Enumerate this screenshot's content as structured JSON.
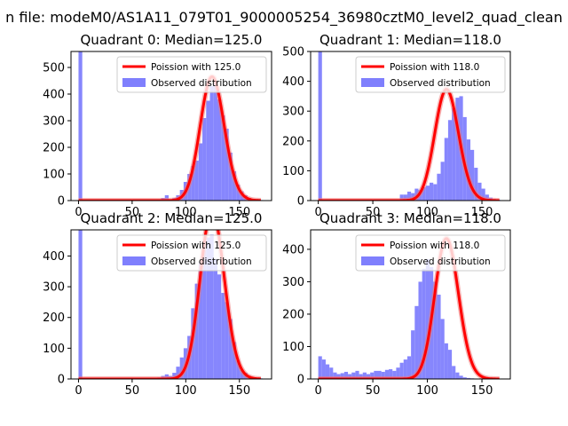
{
  "figure": {
    "title": "n file: modeM0/AS1A11_079T01_9000005254_36980cztM0_level2_quad_clean"
  },
  "colors": {
    "hist": "#7f7ffd",
    "poisson": "#ff0000",
    "poisson_highlight": "#f07878"
  },
  "chart_data": [
    {
      "type": "bar",
      "title": "Quadrant 0: Median=125.0",
      "xlim": [
        -7,
        180
      ],
      "ylim": [
        0,
        560
      ],
      "xticks": [
        0,
        50,
        100,
        150
      ],
      "yticks": [
        0,
        100,
        200,
        300,
        400,
        500
      ],
      "legend": {
        "placement": "top-right",
        "entries": [
          "Poission with 125.0",
          "Observed distribution"
        ]
      },
      "hist_bins": {
        "start": 0,
        "width": 3.5
      },
      "hist_counts": [
        560,
        0,
        0,
        0,
        0,
        0,
        0,
        0,
        0,
        0,
        0,
        0,
        0,
        0,
        0,
        0,
        0,
        0,
        0,
        0,
        0,
        5,
        10,
        20,
        5,
        10,
        20,
        40,
        70,
        100,
        130,
        150,
        215,
        310,
        375,
        430,
        440,
        380,
        320,
        270,
        180,
        110,
        60,
        35,
        20,
        10,
        5,
        3,
        2
      ],
      "poisson_mean": 125.0,
      "poisson_scale": 3.5,
      "poisson_range": [
        0,
        170
      ]
    },
    {
      "type": "bar",
      "title": "Quadrant 1: Median=118.0",
      "xlim": [
        -7,
        176
      ],
      "ylim": [
        0,
        500
      ],
      "xticks": [
        0,
        50,
        100,
        150
      ],
      "yticks": [
        0,
        100,
        200,
        300,
        400,
        500
      ],
      "legend": {
        "placement": "top-right",
        "entries": [
          "Poission with 118.0",
          "Observed distribution"
        ]
      },
      "hist_bins": {
        "start": 0,
        "width": 3.4
      },
      "hist_counts": [
        500,
        0,
        0,
        0,
        0,
        0,
        0,
        0,
        0,
        0,
        0,
        0,
        0,
        0,
        0,
        0,
        0,
        0,
        0,
        0,
        0,
        0,
        20,
        20,
        30,
        25,
        40,
        35,
        45,
        50,
        60,
        55,
        90,
        130,
        210,
        270,
        310,
        345,
        350,
        280,
        205,
        170,
        110,
        60,
        40,
        20,
        10,
        5,
        3
      ],
      "poisson_mean": 118.0,
      "poisson_scale": 3.4,
      "poisson_range": [
        0,
        166
      ]
    },
    {
      "type": "bar",
      "title": "Quadrant 2: Median=125.0",
      "xlim": [
        -7,
        180
      ],
      "ylim": [
        0,
        485
      ],
      "xticks": [
        0,
        50,
        100,
        150
      ],
      "yticks": [
        0,
        100,
        200,
        300,
        400
      ],
      "legend": {
        "placement": "top-right",
        "entries": [
          "Poission with 125.0",
          "Observed distribution"
        ]
      },
      "hist_bins": {
        "start": 0,
        "width": 3.5
      },
      "hist_counts": [
        485,
        0,
        0,
        0,
        0,
        0,
        0,
        0,
        0,
        0,
        0,
        0,
        0,
        0,
        0,
        0,
        0,
        0,
        0,
        0,
        0,
        5,
        10,
        15,
        10,
        20,
        40,
        70,
        100,
        140,
        230,
        310,
        380,
        420,
        460,
        470,
        390,
        340,
        280,
        250,
        195,
        120,
        60,
        30,
        20,
        10,
        5,
        3,
        2
      ],
      "poisson_mean": 125.0,
      "poisson_scale": 3.5,
      "poisson_range": [
        0,
        170
      ]
    },
    {
      "type": "bar",
      "title": "Quadrant 3: Median=118.0",
      "xlim": [
        -7,
        176
      ],
      "ylim": [
        0,
        460
      ],
      "xticks": [
        0,
        50,
        100,
        150
      ],
      "yticks": [
        0,
        100,
        200,
        300,
        400
      ],
      "legend": {
        "placement": "top-right",
        "entries": [
          "Poission with 118.0",
          "Observed distribution"
        ]
      },
      "hist_bins": {
        "start": 0,
        "width": 3.4
      },
      "hist_counts": [
        70,
        60,
        45,
        35,
        20,
        15,
        18,
        22,
        15,
        20,
        25,
        15,
        20,
        15,
        20,
        25,
        25,
        22,
        28,
        30,
        25,
        35,
        50,
        60,
        70,
        150,
        225,
        300,
        340,
        370,
        345,
        300,
        260,
        185,
        110,
        90,
        40,
        20,
        10,
        5,
        3,
        2,
        1,
        0,
        0,
        0,
        0,
        0,
        0
      ],
      "poisson_mean": 118.0,
      "poisson_scale": 3.4,
      "poisson_range": [
        0,
        166
      ]
    }
  ]
}
